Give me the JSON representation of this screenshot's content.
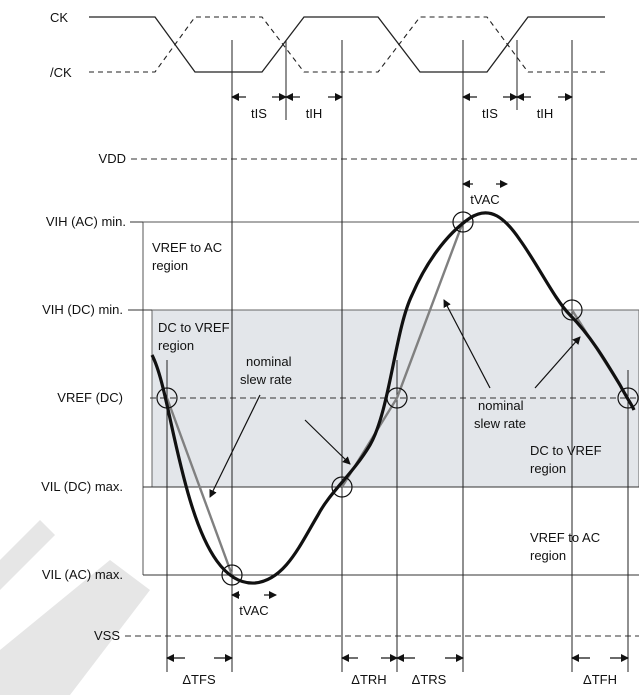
{
  "signals": {
    "ck": "CK",
    "ck_bar": "/CK",
    "vdd": "VDD",
    "vih_ac": "VIH (AC) min.",
    "vih_dc": "VIH (DC) min.",
    "vref": "VREF (DC)",
    "vil_dc": "VIL (DC) max.",
    "vil_ac": "VIL (AC) max.",
    "vss": "VSS"
  },
  "timing": {
    "tis_1": "tIS",
    "tih_1": "tIH",
    "tis_2": "tIS",
    "tih_2": "tIH",
    "tvac_top": "tVAC",
    "tvac_bottom": "tVAC",
    "dtfs": "ΔTFS",
    "dtrh": "ΔTRH",
    "dtrs": "ΔTRS",
    "dtfh": "ΔTFH"
  },
  "regions": {
    "vref_to_ac_top_1": "VREF to AC",
    "vref_to_ac_top_2": "region",
    "dc_to_vref_left_1": "DC to VREF",
    "dc_to_vref_left_2": "region",
    "dc_to_vref_right_1": "DC to VREF",
    "dc_to_vref_right_2": "region",
    "vref_to_ac_bottom_1": "VREF to AC",
    "vref_to_ac_bottom_2": "region"
  },
  "annotations": {
    "nominal_left_1": "nominal",
    "nominal_left_2": "slew rate",
    "nominal_right_1": "nominal",
    "nominal_right_2": "slew rate"
  },
  "colors": {
    "dc_region_fill": "#e3e6ea",
    "waveform": "#111111",
    "slew_line": "#808080",
    "watermark": "#e6e6e6"
  }
}
